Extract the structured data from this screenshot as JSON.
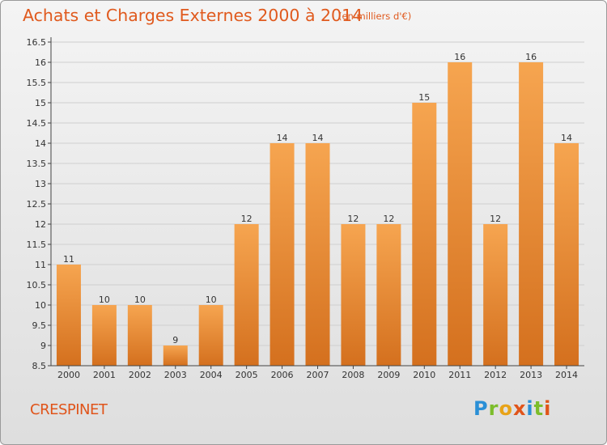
{
  "header": {
    "title": "Achats et Charges Externes 2000 à 2014",
    "unit": "(en milliers d'€)"
  },
  "footer": {
    "commune": "CRESPINET",
    "logo": [
      "P",
      "r",
      "o",
      "x",
      "i",
      "t",
      "i"
    ],
    "logo_colors": [
      "#2a8fd6",
      "#7cbd2b",
      "#e8a318",
      "#e0541a",
      "#2a8fd6",
      "#7cbd2b",
      "#e0541a"
    ]
  },
  "colors": {
    "bar_light": "#f6a550",
    "bar_dark": "#d4701e",
    "grid": "#cfcfcf",
    "axis": "#444444",
    "text": "#333333"
  },
  "chart_data": {
    "type": "bar",
    "title": "Achats et Charges Externes 2000 à 2014",
    "ylabel": "(en milliers d'€)",
    "categories": [
      "2000",
      "2001",
      "2002",
      "2003",
      "2004",
      "2005",
      "2006",
      "2007",
      "2008",
      "2009",
      "2010",
      "2011",
      "2012",
      "2013",
      "2014"
    ],
    "values": [
      11,
      10,
      10,
      9,
      10,
      12,
      14,
      14,
      12,
      12,
      15,
      16,
      12,
      16,
      14
    ],
    "ylim": [
      8.5,
      16.5
    ],
    "yticks": [
      "8.5",
      "9",
      "9.5",
      "10",
      "10.5",
      "11",
      "11.5",
      "12",
      "12.5",
      "13",
      "13.5",
      "14",
      "14.5",
      "15",
      "15.5",
      "16",
      "16.5"
    ],
    "grid": true
  }
}
